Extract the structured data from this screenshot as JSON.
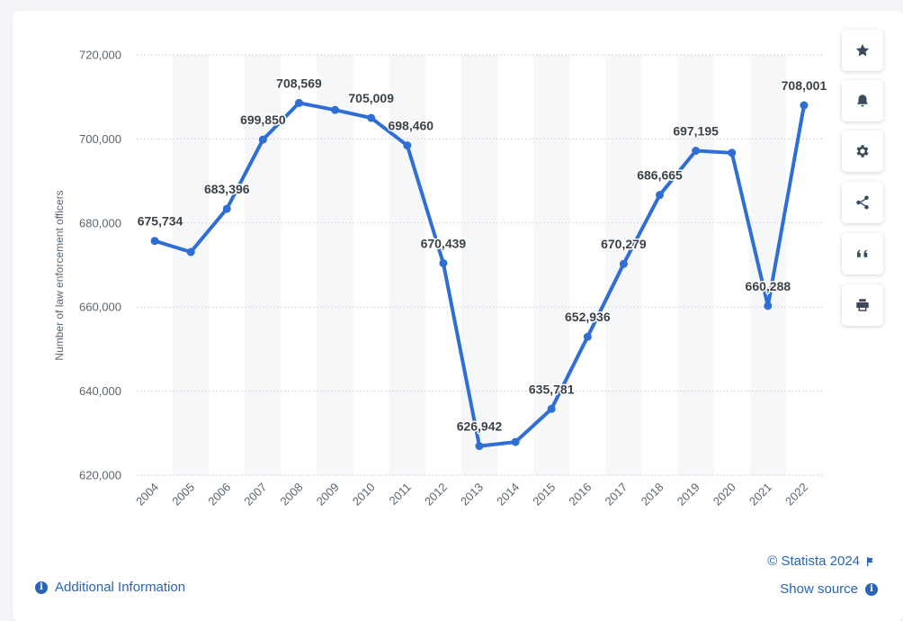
{
  "chart_data": {
    "type": "line",
    "ylabel": "Number of law enforcement officers",
    "xlabel": "",
    "ylim": [
      620000,
      720000
    ],
    "yticks": [
      620000,
      640000,
      660000,
      680000,
      700000,
      720000
    ],
    "ytick_labels": [
      "620,000",
      "640,000",
      "660,000",
      "680,000",
      "700,000",
      "720,000"
    ],
    "grid": "horizontal-dotted",
    "categories": [
      "2004",
      "2005",
      "2006",
      "2007",
      "2008",
      "2009",
      "2010",
      "2011",
      "2012",
      "2013",
      "2014",
      "2015",
      "2016",
      "2017",
      "2018",
      "2019",
      "2020",
      "2021",
      "2022"
    ],
    "series": [
      {
        "values": [
          675734,
          673100,
          683396,
          699850,
          708569,
          706900,
          705009,
          698460,
          670439,
          626942,
          627900,
          635781,
          652936,
          670279,
          686665,
          697195,
          696700,
          660288,
          708001
        ],
        "data_labels": [
          "675,734",
          "",
          "683,396",
          "699,850",
          "708,569",
          "",
          "705,009",
          "698,460",
          "670,439",
          "626,942",
          "",
          "635,781",
          "652,936",
          "670,279",
          "686,665",
          "697,195",
          "",
          "660,288",
          "708,001"
        ]
      }
    ],
    "colors": {
      "line": "#2f6fd5",
      "grid": "#c7ccd2",
      "band": "#f6f7f9",
      "tick_text": "#5a6570",
      "label_text": "#3b4148"
    }
  },
  "toolbar": {
    "buttons": [
      {
        "name": "favorite-button",
        "icon": "star-icon"
      },
      {
        "name": "notification-button",
        "icon": "bell-icon"
      },
      {
        "name": "settings-button",
        "icon": "gear-icon"
      },
      {
        "name": "share-button",
        "icon": "share-icon"
      },
      {
        "name": "cite-button",
        "icon": "quote-icon"
      },
      {
        "name": "print-button",
        "icon": "printer-icon"
      }
    ]
  },
  "footer": {
    "credit": "© Statista 2024",
    "show_source": "Show source",
    "additional_info": "Additional Information"
  }
}
